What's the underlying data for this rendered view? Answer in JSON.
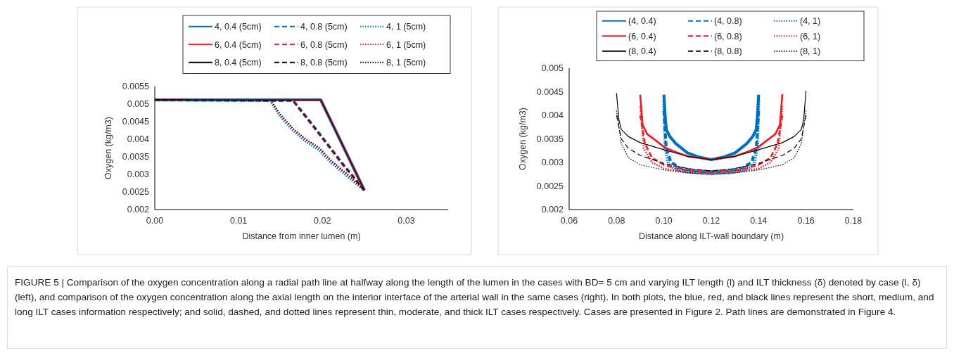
{
  "chart_data": [
    {
      "type": "line",
      "xlabel": "Distance from inner lumen (m)",
      "ylabel": "Oxygen (kg/m3)",
      "xlim": [
        0,
        0.035
      ],
      "xticks": [
        {
          "value": 0,
          "label": "0.00"
        },
        {
          "value": 0.01,
          "label": "0.01"
        },
        {
          "value": 0.02,
          "label": "0.02"
        },
        {
          "value": 0.03,
          "label": "0.03"
        }
      ],
      "ylim": [
        0.002,
        0.0055
      ],
      "yticks": [
        0.002,
        0.0025,
        0.003,
        0.0035,
        0.004,
        0.0045,
        0.005,
        0.0055
      ],
      "legend": "top",
      "grid": false,
      "annotations": [
        "FIGURE 5 | Comparison of the oxygen concentration along a radial path line at halfway along the length of the lumen in the cases with BD= 5 cm and varying ILT length (l) and ILT thickness (δ) denoted by case (l, δ) (left), and comparison of the oxygen concentration along the axial length on the interior interface of the arterial wall in the same cases (right). In both plots, the blue, red, and black lines represent the short, medium, and long ILT cases information respectively; and solid, dashed, and dotted lines represent thin, moderate, and thick ILT cases respectively. Cases are presented in Figure 2. Path lines are demonstrated in Figure 4."
      ],
      "series": [
        {
          "name": "4, 0.4 (5cm)",
          "color": "#0070c0",
          "line_style": "solid",
          "x": [
            0,
            0.0198,
            0.025
          ],
          "values": [
            0.00512,
            0.00512,
            0.00255
          ]
        },
        {
          "name": "4, 0.8 (5cm)",
          "color": "#0070c0",
          "line_style": "dashed",
          "x": [
            0,
            0.0165,
            0.019,
            0.0224,
            0.025
          ],
          "values": [
            0.00512,
            0.0051,
            0.00435,
            0.0033,
            0.00255
          ]
        },
        {
          "name": "4, 1 (5cm)",
          "color": "#0070c0",
          "line_style": "dotted",
          "x": [
            0,
            0.0138,
            0.015,
            0.0165,
            0.018,
            0.0196,
            0.021,
            0.023,
            0.025
          ],
          "values": [
            0.00512,
            0.0051,
            0.00465,
            0.00425,
            0.00395,
            0.0037,
            0.00335,
            0.00295,
            0.00255
          ]
        },
        {
          "name": "6, 0.4 (5cm)",
          "color": "#e8202a",
          "line_style": "solid",
          "x": [
            0,
            0.0198,
            0.025
          ],
          "values": [
            0.00512,
            0.00512,
            0.00255
          ]
        },
        {
          "name": "6, 0.8 (5cm)",
          "color": "#e8202a",
          "line_style": "dashed",
          "x": [
            0,
            0.0165,
            0.019,
            0.0224,
            0.025
          ],
          "values": [
            0.00512,
            0.0051,
            0.00435,
            0.0033,
            0.00255
          ]
        },
        {
          "name": "6, 1 (5cm)",
          "color": "#e8202a",
          "line_style": "dotted",
          "x": [
            0,
            0.0138,
            0.015,
            0.0165,
            0.018,
            0.0196,
            0.021,
            0.023,
            0.025
          ],
          "values": [
            0.00512,
            0.0051,
            0.0047,
            0.0043,
            0.004,
            0.00376,
            0.0034,
            0.003,
            0.00255
          ]
        },
        {
          "name": "8, 0.4 (5cm)",
          "color": "#000000",
          "line_style": "solid",
          "x": [
            0,
            0.0198,
            0.025
          ],
          "values": [
            0.00512,
            0.00512,
            0.00255
          ]
        },
        {
          "name": "8, 0.8 (5cm)",
          "color": "#000000",
          "line_style": "dashed",
          "x": [
            0,
            0.0165,
            0.019,
            0.0224,
            0.025
          ],
          "values": [
            0.00512,
            0.0051,
            0.00435,
            0.0033,
            0.00255
          ]
        },
        {
          "name": "8, 1 (5cm)",
          "color": "#000000",
          "line_style": "dotted",
          "x": [
            0,
            0.0138,
            0.015,
            0.0165,
            0.018,
            0.0196,
            0.021,
            0.023,
            0.025
          ],
          "values": [
            0.00512,
            0.0051,
            0.0047,
            0.0043,
            0.004,
            0.00376,
            0.0034,
            0.003,
            0.00255
          ]
        }
      ]
    },
    {
      "type": "line",
      "xlabel": "Distance along ILT-wall boundary (m)",
      "ylabel": "Oxygen (kg/m3)",
      "xlim": [
        0.06,
        0.18
      ],
      "xticks": [
        0.06,
        0.08,
        {
          "value": 0.1,
          "label": "0.10"
        },
        0.12,
        0.14,
        0.16,
        0.18
      ],
      "ylim": [
        0.002,
        0.005
      ],
      "yticks": [
        0.002,
        0.0025,
        0.003,
        0.0035,
        0.004,
        0.0045,
        0.005
      ],
      "legend": "top",
      "grid": false,
      "series": [
        {
          "name": "(4, 0.4)",
          "color": "#0070c0",
          "line_style": "solid",
          "x": [
            0.1,
            0.1005,
            0.101,
            0.1025,
            0.105,
            0.11,
            0.115,
            0.12,
            0.125,
            0.13,
            0.135,
            0.1375,
            0.139,
            0.1395,
            0.14
          ],
          "values": [
            0.00444,
            0.004,
            0.0037,
            0.00355,
            0.0034,
            0.0032,
            0.00311,
            0.00306,
            0.00311,
            0.0032,
            0.0034,
            0.00355,
            0.0037,
            0.004,
            0.00444
          ]
        },
        {
          "name": "(4, 0.8)",
          "color": "#0070c0",
          "line_style": "dashed",
          "x": [
            0.1,
            0.101,
            0.103,
            0.107,
            0.112,
            0.12,
            0.128,
            0.133,
            0.137,
            0.139,
            0.14
          ],
          "values": [
            0.0041,
            0.0033,
            0.003,
            0.00288,
            0.00283,
            0.0028,
            0.00283,
            0.00288,
            0.003,
            0.0033,
            0.0041
          ]
        },
        {
          "name": "(4, 1)",
          "color": "#0070c0",
          "line_style": "dotted",
          "x": [
            0.1,
            0.1005,
            0.102,
            0.106,
            0.112,
            0.12,
            0.128,
            0.134,
            0.138,
            0.1395,
            0.14
          ],
          "values": [
            0.0043,
            0.0033,
            0.00295,
            0.00283,
            0.00278,
            0.00276,
            0.00278,
            0.00283,
            0.00295,
            0.0033,
            0.0043
          ]
        },
        {
          "name": "(6, 0.4)",
          "color": "#e8202a",
          "line_style": "solid",
          "x": [
            0.09,
            0.091,
            0.093,
            0.097,
            0.1,
            0.105,
            0.11,
            0.12,
            0.13,
            0.135,
            0.14,
            0.143,
            0.147,
            0.149,
            0.15
          ],
          "values": [
            0.00444,
            0.0038,
            0.0036,
            0.00345,
            0.00333,
            0.00322,
            0.00313,
            0.00306,
            0.00313,
            0.00322,
            0.00333,
            0.00345,
            0.0036,
            0.0038,
            0.00445
          ]
        },
        {
          "name": "(6, 0.8)",
          "color": "#e8202a",
          "line_style": "dashed",
          "x": [
            0.09,
            0.092,
            0.095,
            0.1,
            0.105,
            0.11,
            0.12,
            0.13,
            0.135,
            0.14,
            0.145,
            0.148,
            0.15
          ],
          "values": [
            0.004,
            0.0034,
            0.0031,
            0.00295,
            0.00288,
            0.00283,
            0.0028,
            0.00283,
            0.00288,
            0.00295,
            0.0031,
            0.0034,
            0.004
          ]
        },
        {
          "name": "(6, 1)",
          "color": "#e8202a",
          "line_style": "dotted",
          "x": [
            0.09,
            0.0915,
            0.095,
            0.1,
            0.11,
            0.12,
            0.13,
            0.14,
            0.145,
            0.1485,
            0.15
          ],
          "values": [
            0.0042,
            0.0033,
            0.003,
            0.00287,
            0.00279,
            0.00276,
            0.00279,
            0.00287,
            0.003,
            0.0033,
            0.0042
          ]
        },
        {
          "name": "(8, 0.4)",
          "color": "#000000",
          "line_style": "solid",
          "x": [
            0.08,
            0.081,
            0.082,
            0.085,
            0.09,
            0.1,
            0.11,
            0.12,
            0.13,
            0.14,
            0.15,
            0.155,
            0.158,
            0.159,
            0.16
          ],
          "values": [
            0.00447,
            0.0039,
            0.0037,
            0.00355,
            0.00342,
            0.00327,
            0.00313,
            0.00306,
            0.00313,
            0.00327,
            0.00342,
            0.00355,
            0.0037,
            0.0039,
            0.00452
          ]
        },
        {
          "name": "(8, 0.8)",
          "color": "#000000",
          "line_style": "dashed",
          "x": [
            0.08,
            0.082,
            0.085,
            0.09,
            0.1,
            0.11,
            0.12,
            0.13,
            0.14,
            0.15,
            0.155,
            0.158,
            0.16
          ],
          "values": [
            0.004,
            0.0035,
            0.0033,
            0.00315,
            0.00298,
            0.00287,
            0.00282,
            0.00287,
            0.00298,
            0.00315,
            0.0033,
            0.0035,
            0.004
          ]
        },
        {
          "name": "(8, 1)",
          "color": "#000000",
          "line_style": "dotted",
          "x": [
            0.08,
            0.082,
            0.085,
            0.09,
            0.1,
            0.11,
            0.12,
            0.13,
            0.14,
            0.15,
            0.155,
            0.158,
            0.16
          ],
          "values": [
            0.0041,
            0.0034,
            0.0031,
            0.00295,
            0.00284,
            0.00278,
            0.00275,
            0.00278,
            0.00284,
            0.00295,
            0.0031,
            0.0034,
            0.0041
          ]
        }
      ]
    }
  ]
}
